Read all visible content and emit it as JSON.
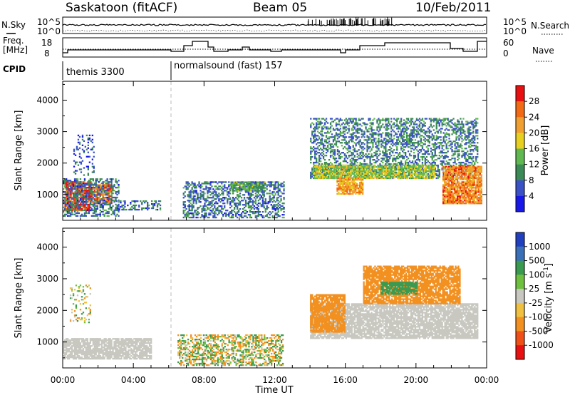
{
  "header": {
    "station": "Saskatoon (fitACF)",
    "beam": "Beam 05",
    "date": "10/Feb/2011"
  },
  "strip_labels": {
    "nsky": "N.Sky",
    "nsearch": "N.Search",
    "freq_line1": "Freq.",
    "freq_line2": "[MHz]",
    "nave": "Nave",
    "cpid": "CPID",
    "noise_top": "10^5",
    "noise_bottom": "10^0",
    "freq_top": "18",
    "freq_bottom": "8",
    "nave_top": "60",
    "nave_bottom": "0"
  },
  "cpid_segments": [
    {
      "label": "themis 3300",
      "start": 0
    },
    {
      "label": "normalsound (fast) 157",
      "start": 6
    }
  ],
  "chart_data": [
    {
      "type": "heatmap",
      "title": "",
      "xlabel": "Time UT",
      "ylabel": "Slant Range [km]",
      "xlim": [
        0,
        24
      ],
      "ylim": [
        180,
        4600
      ],
      "x_ticks": [
        "00:00",
        "04:00",
        "08:00",
        "12:00",
        "16:00",
        "20:00",
        "00:00"
      ],
      "y_ticks": [
        1000,
        2000,
        3000,
        4000
      ],
      "colorbar": {
        "label": "Power [dB]",
        "ticks": [
          4,
          8,
          12,
          16,
          20,
          24,
          28
        ],
        "colors": [
          "#1818e8",
          "#3a52c6",
          "#3c8a55",
          "#5fb850",
          "#e8d020",
          "#f0a030",
          "#f26a14",
          "#e81010"
        ]
      },
      "echo_regions": [
        {
          "t0": 0.1,
          "t1": 1.6,
          "r0": 480,
          "r1": 1400,
          "level": "strong",
          "value_db": 28
        },
        {
          "t0": 1.6,
          "t1": 2.8,
          "r0": 700,
          "r1": 1300,
          "level": "strong",
          "value_db": 26
        },
        {
          "t0": 0.0,
          "t1": 3.2,
          "r0": 300,
          "r1": 1500,
          "level": "weak",
          "value_db": 8
        },
        {
          "t0": 0.6,
          "t1": 1.8,
          "r0": 1600,
          "r1": 2900,
          "level": "sparse",
          "value_db": 6
        },
        {
          "t0": 3.0,
          "t1": 5.5,
          "r0": 500,
          "r1": 800,
          "level": "weak",
          "value_db": 8
        },
        {
          "t0": 6.8,
          "t1": 12.5,
          "r0": 250,
          "r1": 1400,
          "level": "weak",
          "value_db": 8
        },
        {
          "t0": 9.5,
          "t1": 11.5,
          "r0": 1100,
          "r1": 1400,
          "level": "moderate",
          "value_db": 12
        },
        {
          "t0": 14.0,
          "t1": 23.5,
          "r0": 1500,
          "r1": 3400,
          "level": "weak",
          "value_db": 9
        },
        {
          "t0": 14.2,
          "t1": 21.0,
          "r0": 1500,
          "r1": 1950,
          "level": "moderate",
          "value_db": 16
        },
        {
          "t0": 15.5,
          "t1": 17.0,
          "r0": 1000,
          "r1": 1500,
          "level": "strong",
          "value_db": 22
        },
        {
          "t0": 21.5,
          "t1": 23.7,
          "r0": 700,
          "r1": 1900,
          "level": "strong",
          "value_db": 24
        }
      ]
    },
    {
      "type": "heatmap",
      "title": "",
      "xlabel": "Time UT",
      "ylabel": "Slant Range [km]",
      "xlim": [
        0,
        24
      ],
      "ylim": [
        180,
        4600
      ],
      "x_ticks": [
        "00:00",
        "04:00",
        "08:00",
        "12:00",
        "16:00",
        "20:00",
        "00:00"
      ],
      "y_ticks": [
        1000,
        2000,
        3000,
        4000
      ],
      "colorbar": {
        "label": "Velocity [m s^-1]",
        "ticks": [
          1000,
          500,
          100,
          25,
          -25,
          -100,
          -500,
          -1000
        ],
        "colors": [
          "#2040c0",
          "#3a70b8",
          "#3a9a50",
          "#70c040",
          "#c8c8c0",
          "#f0c040",
          "#f29020",
          "#f05018",
          "#e81010"
        ]
      },
      "echo_regions": [
        {
          "t0": 0.0,
          "t1": 5.0,
          "r0": 450,
          "r1": 1100,
          "level": "ground_scatter",
          "value_ms": 0
        },
        {
          "t0": 0.4,
          "t1": 1.6,
          "r0": 1600,
          "r1": 2800,
          "level": "sparse",
          "value_ms": 0
        },
        {
          "t0": 6.5,
          "t1": 12.5,
          "r0": 250,
          "r1": 1200,
          "level": "mixed",
          "value_ms": -50
        },
        {
          "t0": 14.0,
          "t1": 23.5,
          "r0": 1100,
          "r1": 2200,
          "level": "ground_scatter",
          "value_ms": 0
        },
        {
          "t0": 14.0,
          "t1": 16.0,
          "r0": 1300,
          "r1": 2500,
          "level": "away",
          "value_ms": -300
        },
        {
          "t0": 17.0,
          "t1": 22.5,
          "r0": 2200,
          "r1": 3400,
          "level": "away",
          "value_ms": -300
        },
        {
          "t0": 18.0,
          "t1": 20.0,
          "r0": 2500,
          "r1": 2900,
          "level": "toward",
          "value_ms": 300
        }
      ]
    }
  ]
}
